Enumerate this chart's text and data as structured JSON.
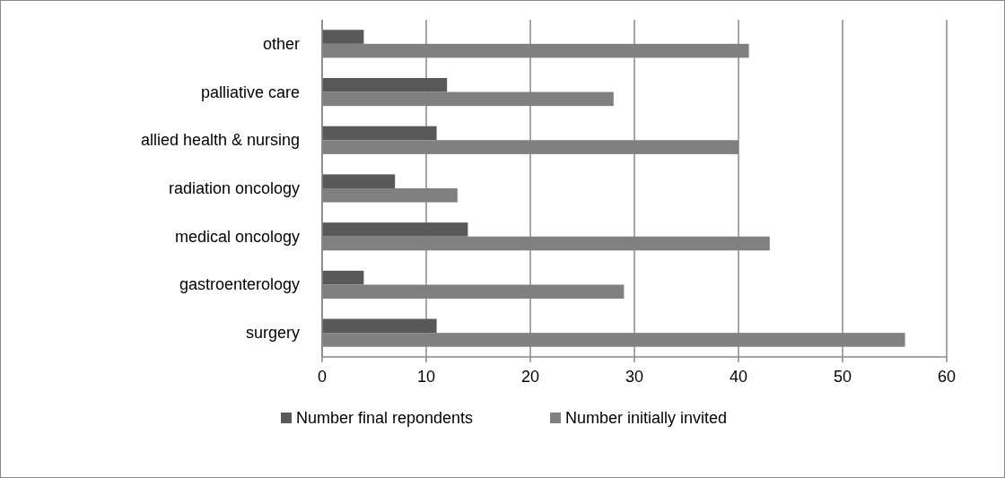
{
  "chart_data": {
    "type": "bar",
    "orientation": "horizontal",
    "categories": [
      "other",
      "palliative care",
      "allied health & nursing",
      "radiation oncology",
      "medical oncology",
      "gastroenterology",
      "surgery"
    ],
    "series": [
      {
        "name": "Number final repondents",
        "color": "#595959",
        "values": [
          4,
          12,
          11,
          7,
          14,
          4,
          11
        ]
      },
      {
        "name": "Number initially invited",
        "color": "#808080",
        "values": [
          41,
          28,
          40,
          13,
          43,
          29,
          56
        ]
      }
    ],
    "xlim": [
      0,
      60
    ],
    "xticks": [
      0,
      10,
      20,
      30,
      40,
      50,
      60
    ],
    "grid": "x",
    "legend": "bottom"
  }
}
